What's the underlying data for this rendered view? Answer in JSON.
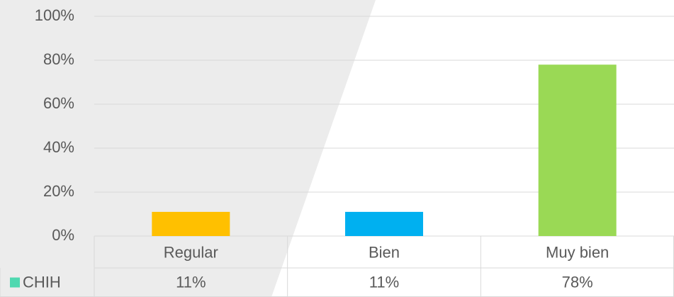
{
  "chart_data": {
    "type": "bar",
    "categories": [
      "Regular",
      "Bien",
      "Muy bien"
    ],
    "series": [
      {
        "name": "CHIH",
        "color": "#4fd8b0",
        "colors": [
          "#ffc000",
          "#00b0f0",
          "#9ad955"
        ],
        "values": [
          11,
          11,
          78
        ],
        "value_labels": [
          "11%",
          "11%",
          "78%"
        ]
      }
    ],
    "ylim": [
      0,
      100
    ],
    "yticks": [
      {
        "value": 0,
        "label": "0%"
      },
      {
        "value": 20,
        "label": "20%"
      },
      {
        "value": 40,
        "label": "40%"
      },
      {
        "value": 60,
        "label": "60%"
      },
      {
        "value": 80,
        "label": "80%"
      },
      {
        "value": 100,
        "label": "100%"
      }
    ],
    "grid": true
  }
}
